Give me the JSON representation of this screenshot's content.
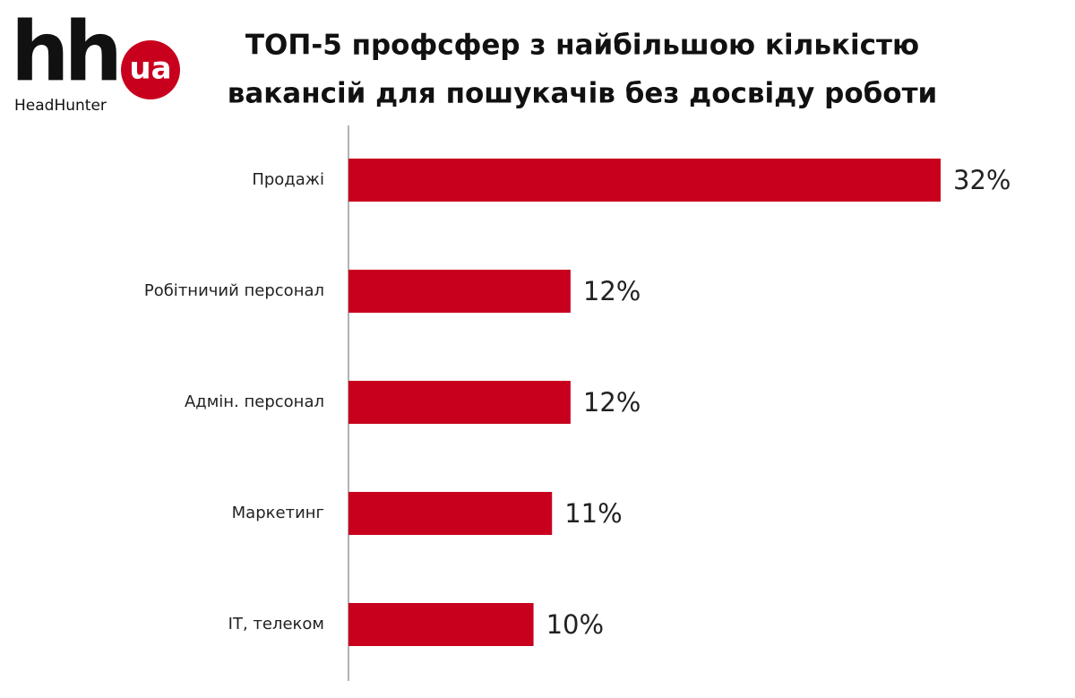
{
  "logo": {
    "mark": "hh",
    "badge": "ua",
    "brand": "HeadHunter"
  },
  "chart_data": {
    "type": "bar",
    "orientation": "horizontal",
    "title": [
      "ТОП-5 профсфер з найбільшою кількістю",
      "вакансій для пошукачів без досвіду роботи"
    ],
    "categories": [
      "Продажі",
      "Робітничий персонал",
      "Адмін. персонал",
      "Маркетинг",
      "ІТ, телеком"
    ],
    "values": [
      32,
      12,
      12,
      11,
      10
    ],
    "value_labels": [
      "32%",
      "12%",
      "12%",
      "11%",
      "10%"
    ],
    "color": "#c8001e",
    "xlim": [
      0,
      32
    ]
  }
}
